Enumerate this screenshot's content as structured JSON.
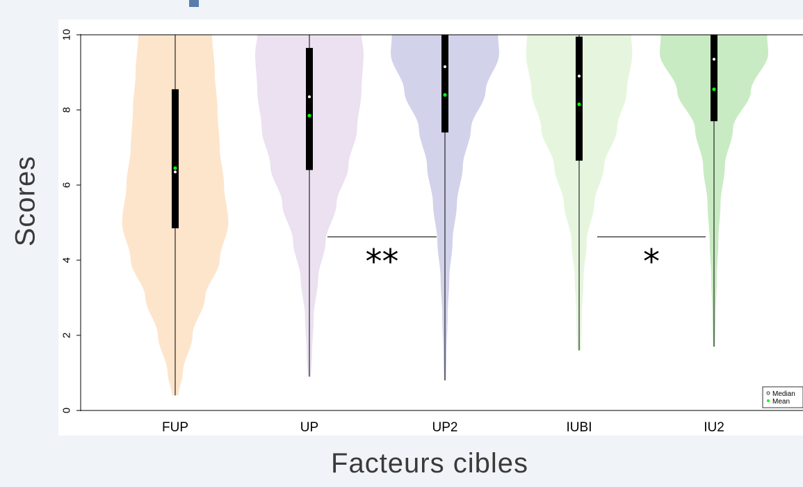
{
  "chart_data": {
    "type": "violin",
    "xlabel": "Facteurs cibles",
    "ylabel": "Scores",
    "ylim": [
      0,
      10
    ],
    "yticks": [
      "0",
      "2",
      "4",
      "6",
      "8",
      "10"
    ],
    "categories": [
      "FUP",
      "UP",
      "UP2",
      "IUBI",
      "IU2"
    ],
    "colors": [
      "#fde5cc",
      "#ebe1f0",
      "#d2d3ea",
      "#e6f6de",
      "#c9ebc3"
    ],
    "series": [
      {
        "category": "FUP",
        "min": 0.4,
        "max": 10,
        "q1": 4.85,
        "q3": 8.55,
        "median": 6.35,
        "mean": 6.45,
        "density": [
          [
            0.4,
            0.06
          ],
          [
            1.0,
            0.14
          ],
          [
            2.0,
            0.32
          ],
          [
            3.0,
            0.55
          ],
          [
            4.0,
            0.82
          ],
          [
            5.0,
            0.98
          ],
          [
            6.0,
            0.9
          ],
          [
            7.0,
            0.82
          ],
          [
            8.0,
            0.78
          ],
          [
            9.0,
            0.73
          ],
          [
            10.0,
            0.68
          ]
        ]
      },
      {
        "category": "UP",
        "min": 0.9,
        "max": 10,
        "q1": 6.4,
        "q3": 9.65,
        "median": 8.35,
        "mean": 7.85,
        "density": [
          [
            0.9,
            0.03
          ],
          [
            1.5,
            0.05
          ],
          [
            2.5,
            0.08
          ],
          [
            3.5,
            0.16
          ],
          [
            4.5,
            0.3
          ],
          [
            5.5,
            0.5
          ],
          [
            6.5,
            0.72
          ],
          [
            7.5,
            0.88
          ],
          [
            8.5,
            0.96
          ],
          [
            9.5,
            1.0
          ],
          [
            10.0,
            0.96
          ]
        ]
      },
      {
        "category": "UP2",
        "min": 0.8,
        "max": 10,
        "q1": 7.4,
        "q3": 10,
        "median": 9.15,
        "mean": 8.4,
        "density": [
          [
            0.8,
            0.02
          ],
          [
            1.5,
            0.03
          ],
          [
            2.5,
            0.05
          ],
          [
            3.5,
            0.08
          ],
          [
            4.5,
            0.14
          ],
          [
            5.5,
            0.22
          ],
          [
            6.5,
            0.33
          ],
          [
            7.5,
            0.48
          ],
          [
            8.5,
            0.75
          ],
          [
            9.5,
            1.0
          ],
          [
            10.0,
            0.98
          ]
        ]
      },
      {
        "category": "IUBI",
        "min": 1.6,
        "max": 10,
        "q1": 6.65,
        "q3": 9.95,
        "median": 8.9,
        "mean": 8.15,
        "density": [
          [
            1.6,
            0.04
          ],
          [
            2.5,
            0.05
          ],
          [
            3.5,
            0.08
          ],
          [
            4.5,
            0.14
          ],
          [
            5.5,
            0.28
          ],
          [
            6.5,
            0.46
          ],
          [
            7.5,
            0.7
          ],
          [
            8.5,
            0.88
          ],
          [
            9.5,
            0.98
          ],
          [
            10.0,
            0.96
          ]
        ]
      },
      {
        "category": "IU2",
        "min": 1.7,
        "max": 10,
        "q1": 7.7,
        "q3": 10,
        "median": 9.35,
        "mean": 8.55,
        "density": [
          [
            1.7,
            0.02
          ],
          [
            2.5,
            0.03
          ],
          [
            3.5,
            0.05
          ],
          [
            4.5,
            0.08
          ],
          [
            5.5,
            0.12
          ],
          [
            6.5,
            0.2
          ],
          [
            7.5,
            0.35
          ],
          [
            8.5,
            0.68
          ],
          [
            9.5,
            1.0
          ],
          [
            10.0,
            0.98
          ]
        ]
      }
    ],
    "annotations": [
      {
        "between": [
          "UP",
          "UP2"
        ],
        "y": 4.62,
        "label": "**"
      },
      {
        "between": [
          "IUBI",
          "IU2"
        ],
        "y": 4.62,
        "label": "*"
      }
    ],
    "legend": {
      "position": "bottom-right",
      "items": [
        {
          "label": "Median",
          "marker": "open-circle"
        },
        {
          "label": "Mean",
          "marker": "green-dot"
        }
      ]
    },
    "grid": false
  },
  "style": {
    "box_color": "#000000",
    "median_color": "#ffffff",
    "mean_color": "#00ff00",
    "accent_color": "#5a7dab"
  }
}
